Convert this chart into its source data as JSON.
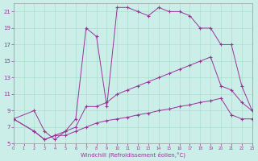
{
  "xlabel": "Windchill (Refroidissement éolien,°C)",
  "bg_color": "#cceee8",
  "grid_color": "#aaddcc",
  "line_color": "#993399",
  "xlim": [
    0,
    23
  ],
  "ylim": [
    5,
    22
  ],
  "xticks": [
    0,
    1,
    2,
    3,
    4,
    5,
    6,
    7,
    8,
    9,
    10,
    11,
    12,
    13,
    14,
    15,
    16,
    17,
    18,
    19,
    20,
    21,
    22,
    23
  ],
  "yticks": [
    5,
    7,
    9,
    11,
    13,
    15,
    17,
    19,
    21
  ],
  "curve1_x": [
    0,
    2,
    3,
    4,
    5,
    6,
    7,
    8,
    9,
    10,
    11,
    12,
    13,
    14,
    15,
    16,
    17,
    18,
    19,
    20,
    21,
    22,
    23
  ],
  "curve1_y": [
    8,
    9,
    6.5,
    5.5,
    6.5,
    8,
    19,
    18,
    9.5,
    21.5,
    21.5,
    21.0,
    20.5,
    21.5,
    21.0,
    21.0,
    20.5,
    19.0,
    19.0,
    17.0,
    17.0,
    12.0,
    9.0
  ],
  "curve2_x": [
    0,
    2,
    3,
    4,
    5,
    6,
    7,
    8,
    9,
    10,
    11,
    12,
    13,
    14,
    15,
    16,
    17,
    18,
    19,
    20,
    21,
    22,
    23
  ],
  "curve2_y": [
    8,
    6.5,
    5.5,
    6.0,
    6.5,
    7.0,
    9.5,
    9.5,
    10.0,
    11.0,
    11.5,
    12.0,
    12.5,
    13.0,
    13.5,
    14.0,
    14.5,
    15.0,
    15.5,
    12.0,
    11.5,
    10.0,
    9.0
  ],
  "curve3_x": [
    0,
    2,
    3,
    4,
    5,
    6,
    7,
    8,
    9,
    10,
    11,
    12,
    13,
    14,
    15,
    16,
    17,
    18,
    19,
    20,
    21,
    22,
    23
  ],
  "curve3_y": [
    8,
    6.5,
    5.5,
    6.0,
    6.0,
    6.5,
    7.0,
    7.5,
    7.8,
    8.0,
    8.2,
    8.5,
    8.7,
    9.0,
    9.2,
    9.5,
    9.7,
    10.0,
    10.2,
    10.5,
    8.5,
    8.0,
    8.0
  ]
}
